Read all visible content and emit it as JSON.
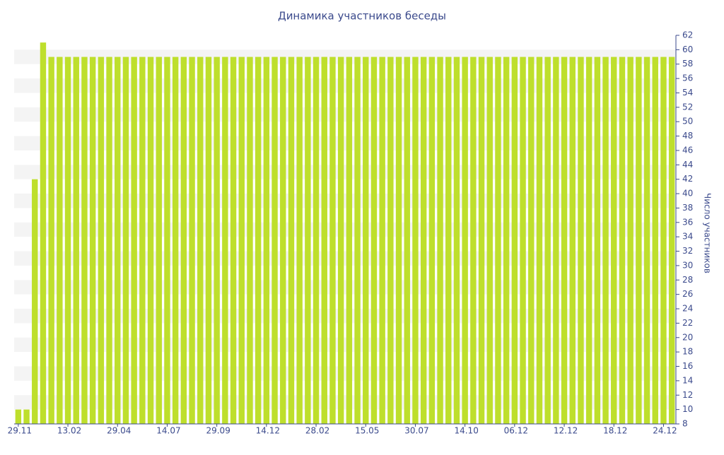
{
  "chart_data": {
    "type": "bar",
    "title": "Динамика участников беседы",
    "y_label": "Число участников",
    "categories": [
      "29.11",
      null,
      null,
      null,
      null,
      null,
      "13.02",
      null,
      null,
      null,
      null,
      null,
      "29.04",
      null,
      null,
      null,
      null,
      null,
      "14.07",
      null,
      null,
      null,
      null,
      null,
      "29.09",
      null,
      null,
      null,
      null,
      null,
      "14.12",
      null,
      null,
      null,
      null,
      null,
      "28.02",
      null,
      null,
      null,
      null,
      null,
      "15.05",
      null,
      null,
      null,
      null,
      null,
      "30.07",
      null,
      null,
      null,
      null,
      null,
      "14.10",
      null,
      null,
      null,
      null,
      null,
      "06.12",
      null,
      null,
      null,
      null,
      null,
      "12.12",
      null,
      null,
      null,
      null,
      null,
      "18.12",
      null,
      null,
      null,
      null,
      null,
      "24.12",
      null
    ],
    "values": [
      10,
      10,
      42,
      61,
      59,
      59,
      59,
      59,
      59,
      59,
      59,
      59,
      59,
      59,
      59,
      59,
      59,
      59,
      59,
      59,
      59,
      59,
      59,
      59,
      59,
      59,
      59,
      59,
      59,
      59,
      59,
      59,
      59,
      59,
      59,
      59,
      59,
      59,
      59,
      59,
      59,
      59,
      59,
      59,
      59,
      59,
      59,
      59,
      59,
      59,
      59,
      59,
      59,
      59,
      59,
      59,
      59,
      59,
      59,
      59,
      59,
      59,
      59,
      59,
      59,
      59,
      59,
      59,
      59,
      59,
      59,
      59,
      59,
      59,
      59,
      59,
      59,
      59,
      59,
      59
    ],
    "color": "#bedf2c",
    "ylim": [
      8,
      62
    ],
    "yticks": [
      8,
      10,
      12,
      14,
      16,
      18,
      20,
      22,
      24,
      26,
      28,
      30,
      32,
      34,
      36,
      38,
      40,
      42,
      44,
      46,
      48,
      50,
      52,
      54,
      56,
      58,
      60,
      62
    ],
    "grid": true
  }
}
